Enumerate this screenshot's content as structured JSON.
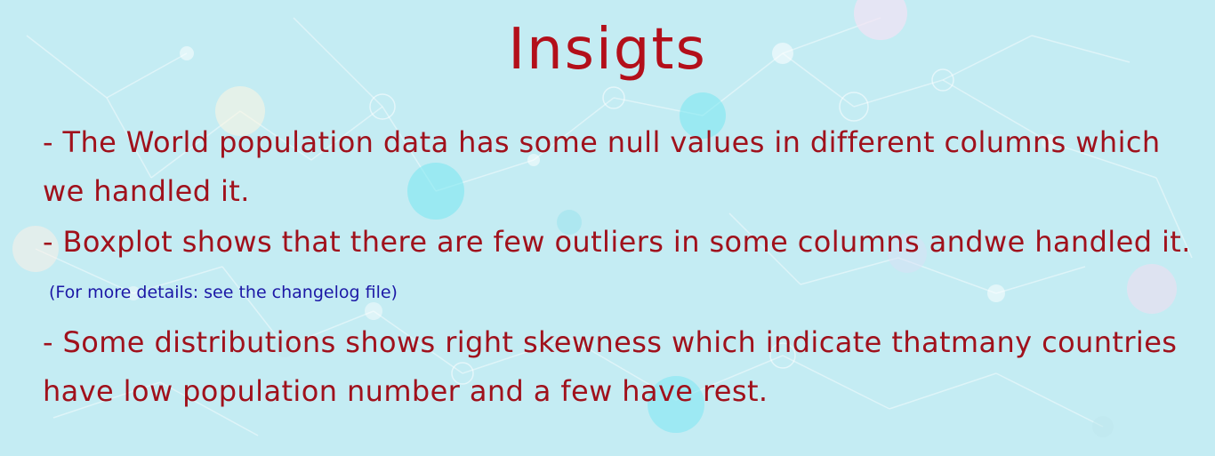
{
  "slide": {
    "title": "Insigts",
    "lines": [
      "- The World population data has some null values in different columns which",
      "we handled it.",
      "- Boxplot shows that there are few outliers in some columns andwe handled it.",
      "(For more details: see the changelog file)",
      "- Some distributions shows right skewness which indicate thatmany countries",
      "have low population number and a few have rest."
    ]
  },
  "colors": {
    "background": "#c4ecf3",
    "title": "#b30f1a",
    "body_text": "#a0111c",
    "note_text": "#1c18a6"
  }
}
